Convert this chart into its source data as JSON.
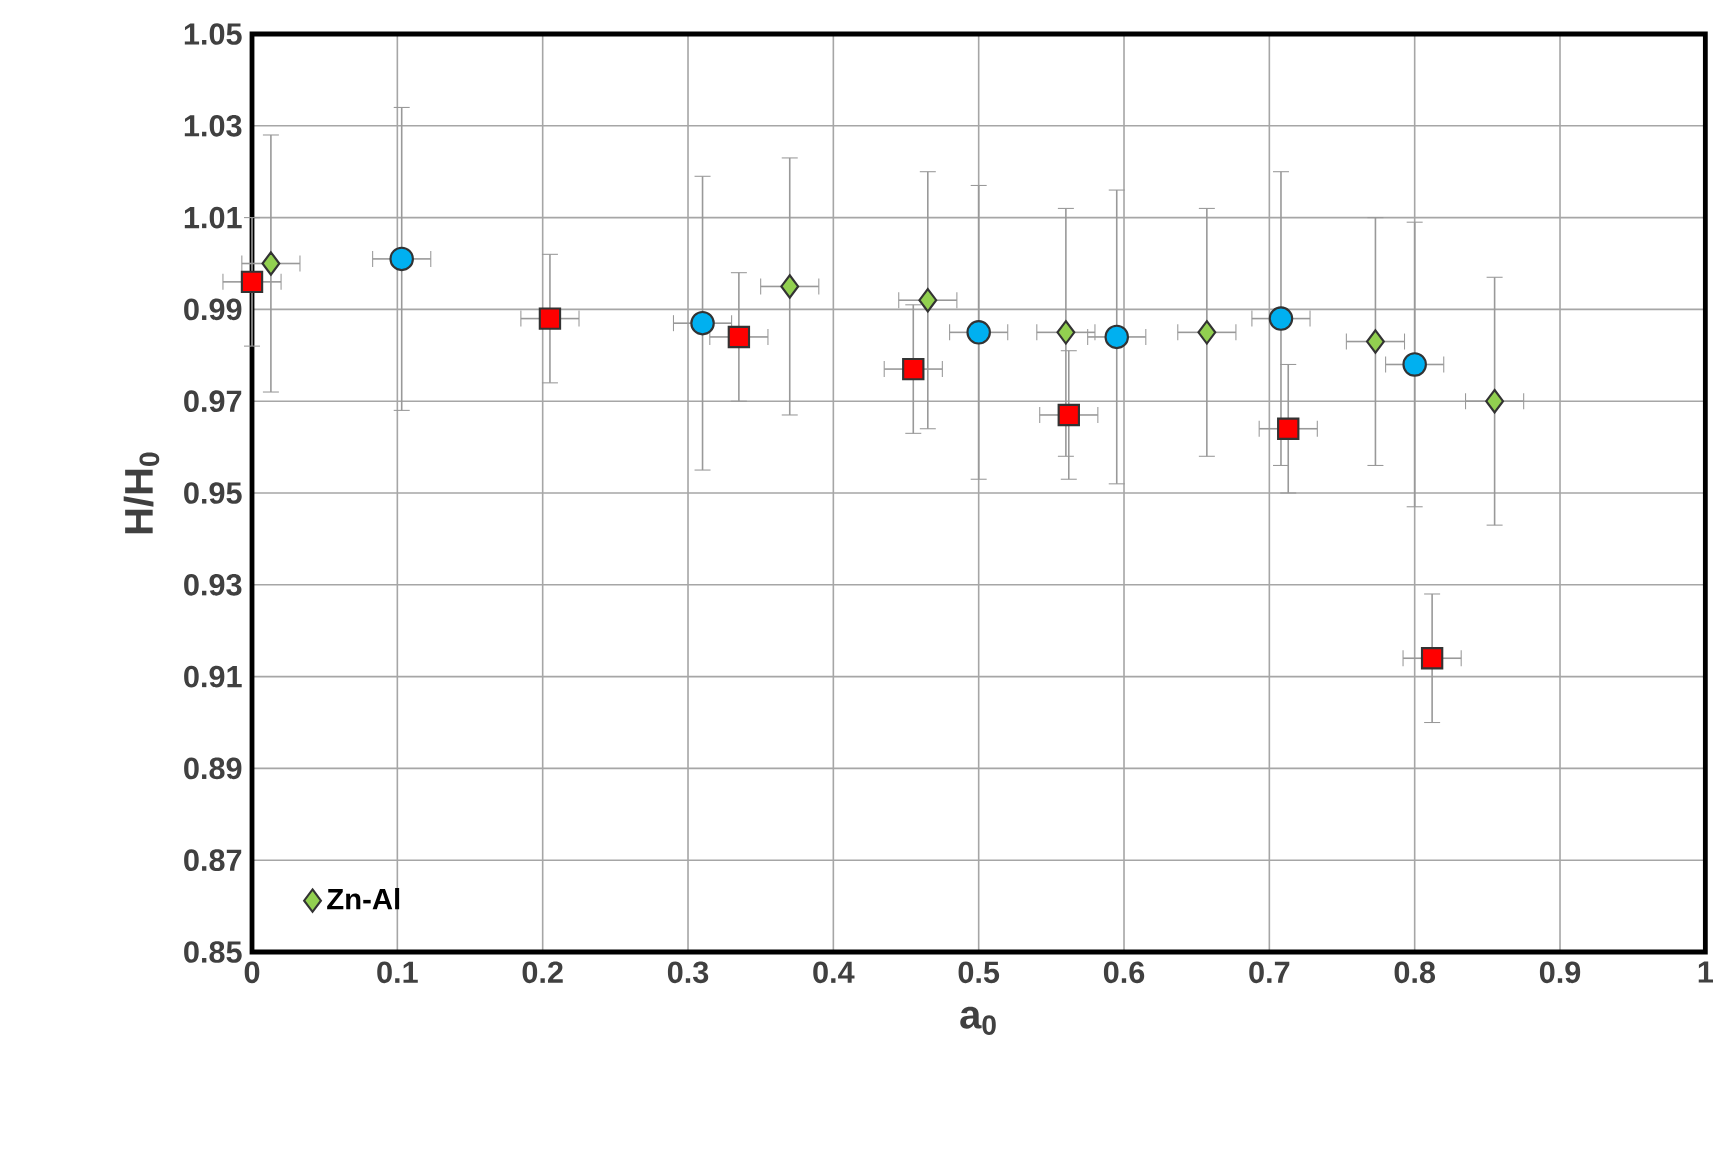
{
  "chart_data": {
    "type": "scatter",
    "xlabel": "a$_{0}$",
    "ylabel": "H/H$_{0}$",
    "xlim": [
      0,
      1
    ],
    "ylim": [
      0.85,
      1.05
    ],
    "xticks": [
      0,
      0.1,
      0.2,
      0.3,
      0.4,
      0.5,
      0.6,
      0.7,
      0.8,
      0.9,
      1
    ],
    "yticks": [
      0.85,
      0.87,
      0.89,
      0.91,
      0.93,
      0.95,
      0.97,
      0.99,
      1.01,
      1.03,
      1.05
    ],
    "grid": true,
    "legend": "bottom left",
    "series": [
      {
        "color": "#00b0f0",
        "marker": "circle",
        "x": [
          0.103,
          0.31,
          0.5,
          0.595,
          0.708,
          0.8
        ],
        "values": [
          1.001,
          0.987,
          0.985,
          0.984,
          0.988,
          0.978
        ],
        "errors": [
          0.033,
          0.032,
          0.032,
          0.032,
          0.032,
          0.031
        ],
        "xerrors": [
          0.02,
          0.02,
          0.02,
          0.02,
          0.02,
          0.02
        ]
      },
      {
        "color": "#ff0000",
        "marker": "square",
        "x": [
          0.0,
          0.205,
          0.335,
          0.455,
          0.562,
          0.713,
          0.812
        ],
        "values": [
          0.996,
          0.988,
          0.984,
          0.977,
          0.967,
          0.964,
          0.914
        ],
        "errors": [
          0.014,
          0.014,
          0.014,
          0.014,
          0.014,
          0.014,
          0.014
        ],
        "xerrors": [
          0.02,
          0.02,
          0.02,
          0.02,
          0.02,
          0.02,
          0.02
        ]
      },
      {
        "name": "Zn-Al",
        "color": "#92d050",
        "marker": "diamond",
        "x": [
          0.013,
          0.37,
          0.465,
          0.56,
          0.657,
          0.773,
          0.855
        ],
        "values": [
          1.0,
          0.995,
          0.992,
          0.985,
          0.985,
          0.983,
          0.97
        ],
        "errors": [
          0.028,
          0.028,
          0.028,
          0.027,
          0.027,
          0.027,
          0.027
        ],
        "xerrors": [
          0.02,
          0.02,
          0.02,
          0.02,
          0.02,
          0.02,
          0.02
        ]
      }
    ]
  }
}
